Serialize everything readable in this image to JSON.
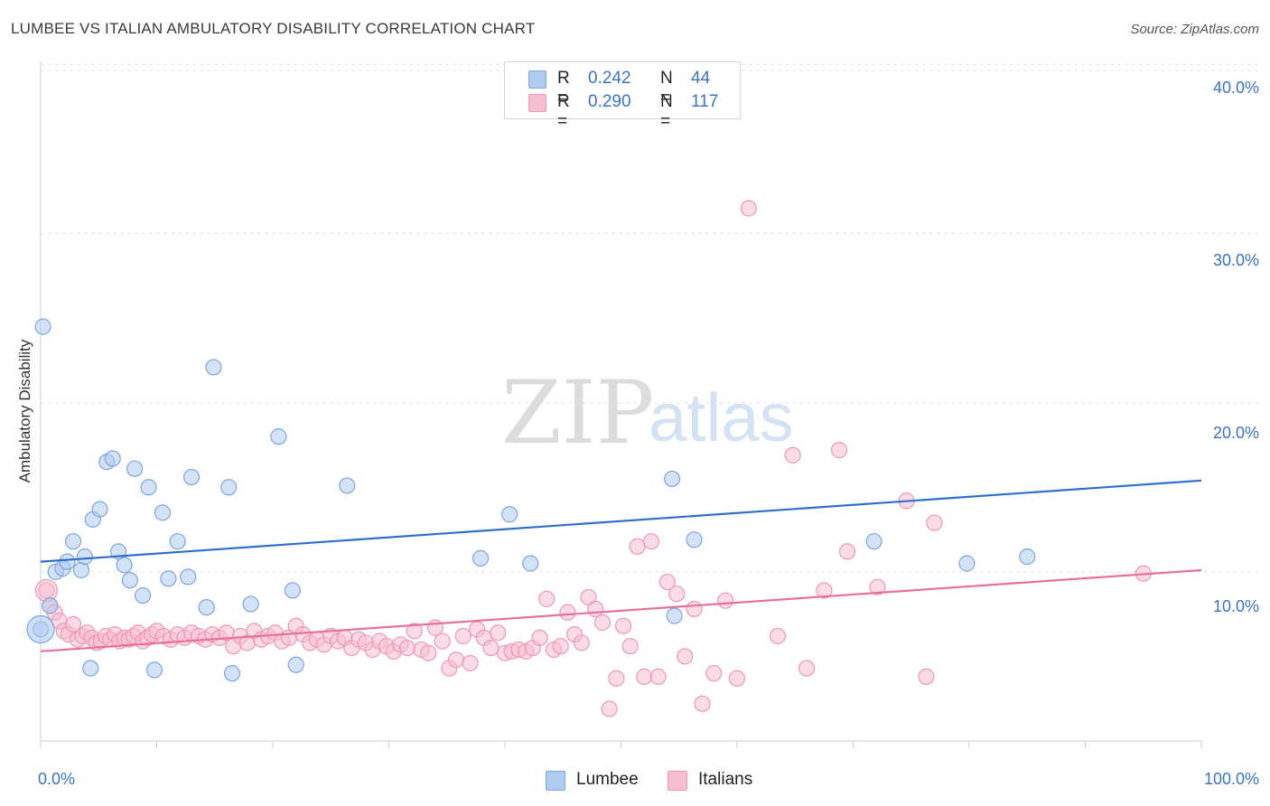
{
  "title": "LUMBEE VS ITALIAN AMBULATORY DISABILITY CORRELATION CHART",
  "source": "Source: ZipAtlas.com",
  "watermark": {
    "zip": "ZIP",
    "atlas": "atlas"
  },
  "legend": {
    "r_label": "R =",
    "n_label": "N =",
    "lumbee": {
      "r": "0.242",
      "n": "44"
    },
    "italians": {
      "r": "0.290",
      "n": "117"
    }
  },
  "colors": {
    "lumbee_fill": "#aecbf0",
    "lumbee_stroke": "#7ea6dd",
    "lumbee_line": "#2f6fcc",
    "italians_fill": "#f7bdd0",
    "italians_stroke": "#ee98b5",
    "italians_line": "#e86f98",
    "tick_text": "#3a73c6"
  },
  "chart_data": {
    "type": "scatter",
    "title": "LUMBEE VS ITALIAN AMBULATORY DISABILITY CORRELATION CHART",
    "ylabel": "Ambulatory Disability",
    "xlabel": "",
    "xlim": [
      0,
      100
    ],
    "ylim": [
      0,
      42
    ],
    "x_tick_labels": [
      "0.0%",
      "100.0%"
    ],
    "y_ticks": [
      10,
      20,
      30,
      40
    ],
    "y_tick_labels": [
      "10.0%",
      "20.0%",
      "30.0%",
      "40.0%"
    ],
    "grid": "horizontal dashed",
    "legend_position": "top-center",
    "series": [
      {
        "name": "Lumbee",
        "r": 0.242,
        "n": 44,
        "trend": {
          "x": [
            0,
            100
          ],
          "y": [
            10.6,
            15.4
          ]
        },
        "x": [
          0.0,
          0.8,
          1.3,
          1.9,
          2.3,
          2.8,
          3.5,
          3.8,
          4.3,
          4.5,
          5.1,
          5.7,
          6.2,
          6.7,
          7.2,
          7.7,
          8.1,
          8.8,
          9.3,
          9.8,
          10.5,
          11.0,
          11.8,
          12.7,
          13.0,
          14.3,
          14.9,
          16.2,
          16.5,
          18.1,
          20.5,
          21.7,
          22.0,
          26.4,
          37.9,
          40.4,
          42.2,
          54.4,
          54.6,
          56.3,
          71.8,
          79.8,
          85.0,
          0.2
        ],
        "y": [
          6.6,
          8.0,
          10.0,
          10.2,
          10.6,
          11.8,
          10.1,
          10.9,
          4.3,
          13.1,
          13.7,
          16.5,
          16.7,
          11.2,
          10.4,
          9.5,
          16.1,
          8.6,
          15.0,
          4.2,
          13.5,
          9.6,
          11.8,
          9.7,
          15.6,
          7.9,
          22.1,
          15.0,
          4.0,
          8.1,
          18.0,
          8.9,
          4.5,
          15.1,
          10.8,
          13.4,
          10.5,
          15.5,
          7.4,
          11.9,
          11.8,
          10.5,
          10.9,
          24.5
        ]
      },
      {
        "name": "Italians",
        "r": 0.29,
        "n": 117,
        "trend": {
          "x": [
            0,
            100
          ],
          "y": [
            5.3,
            10.1
          ]
        },
        "x": [
          0.5,
          0.8,
          1.2,
          1.6,
          2.0,
          2.4,
          2.8,
          3.2,
          3.6,
          4.0,
          4.4,
          4.8,
          5.2,
          5.6,
          6.0,
          6.4,
          6.8,
          7.2,
          7.6,
          8.0,
          8.4,
          8.8,
          9.2,
          9.6,
          10.0,
          10.6,
          11.2,
          11.8,
          12.4,
          13.0,
          13.6,
          14.2,
          14.8,
          15.4,
          16.0,
          16.6,
          17.2,
          17.8,
          18.4,
          19.0,
          19.6,
          20.2,
          20.8,
          21.4,
          22.0,
          22.6,
          23.2,
          23.8,
          24.4,
          25.0,
          25.6,
          26.2,
          26.8,
          27.4,
          28.0,
          28.6,
          29.2,
          29.8,
          30.4,
          31.0,
          31.6,
          32.2,
          32.8,
          33.4,
          34.0,
          34.6,
          35.2,
          35.8,
          36.4,
          37.0,
          37.6,
          38.2,
          38.8,
          39.4,
          40.0,
          40.6,
          41.2,
          41.8,
          42.4,
          43.0,
          43.6,
          44.2,
          44.8,
          45.4,
          46.0,
          46.6,
          47.2,
          47.8,
          48.4,
          49.0,
          49.6,
          50.2,
          50.8,
          51.4,
          52.0,
          52.6,
          53.2,
          54.0,
          54.8,
          55.5,
          56.3,
          57.0,
          58.0,
          59.0,
          60.0,
          61.0,
          63.5,
          64.8,
          66.0,
          67.5,
          68.8,
          69.5,
          72.1,
          74.6,
          76.3,
          77.0,
          95.0
        ],
        "y": [
          8.9,
          8.0,
          7.6,
          7.1,
          6.5,
          6.3,
          6.9,
          6.0,
          6.2,
          6.4,
          6.1,
          5.8,
          5.9,
          6.2,
          6.0,
          6.3,
          5.9,
          6.1,
          6.0,
          6.2,
          6.4,
          5.9,
          6.1,
          6.3,
          6.5,
          6.2,
          6.0,
          6.3,
          6.1,
          6.4,
          6.2,
          6.0,
          6.3,
          6.1,
          6.4,
          5.6,
          6.2,
          5.8,
          6.5,
          6.0,
          6.2,
          6.4,
          5.9,
          6.1,
          6.8,
          6.3,
          5.8,
          6.0,
          5.7,
          6.2,
          5.9,
          6.1,
          5.5,
          6.0,
          5.8,
          5.4,
          5.9,
          5.6,
          5.3,
          5.7,
          5.5,
          6.5,
          5.4,
          5.2,
          6.7,
          5.9,
          4.3,
          4.8,
          6.2,
          4.6,
          6.6,
          6.1,
          5.5,
          6.4,
          5.2,
          5.3,
          5.4,
          5.3,
          5.5,
          6.1,
          8.4,
          5.4,
          5.6,
          7.6,
          6.3,
          5.8,
          8.5,
          7.8,
          7.0,
          1.9,
          3.7,
          6.8,
          5.6,
          11.5,
          3.8,
          11.8,
          3.8,
          9.4,
          8.7,
          5.0,
          7.8,
          2.2,
          4.0,
          8.3,
          3.7,
          31.5,
          6.2,
          16.9,
          4.3,
          8.9,
          17.2,
          11.2,
          9.1,
          14.2,
          3.8,
          12.9,
          9.9
        ]
      }
    ]
  }
}
